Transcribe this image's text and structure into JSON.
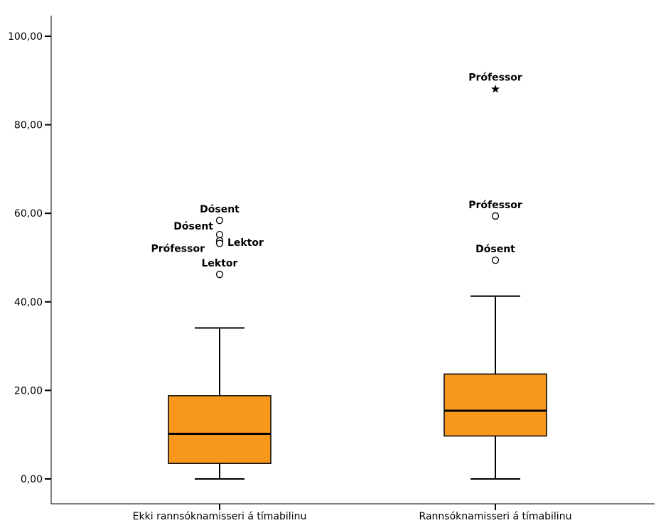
{
  "chart_data": {
    "type": "boxplot",
    "title": "",
    "xlabel": "",
    "ylabel": "",
    "ylim": [
      -5.5,
      106
    ],
    "yticks": [
      0,
      20,
      40,
      60,
      80,
      100
    ],
    "ytick_labels": [
      "0,00",
      "20,00",
      "40,00",
      "60,00",
      "80,00",
      "100,00"
    ],
    "grid": false,
    "box_color": "#F7981D",
    "categories": [
      "Ekki rannsóknamisseri á tímabilinu",
      "Rannsóknamisseri á tímabilinu"
    ],
    "boxes": [
      {
        "category": "Ekki rannsóknamisseri á tímabilinu",
        "whisker_low": 0.0,
        "q1": 3.5,
        "median": 10.2,
        "q3": 18.8,
        "whisker_high": 34.1,
        "outliers": [
          {
            "value": 58.4,
            "marker": "circle",
            "label": "Dósent",
            "label_pos": "above"
          },
          {
            "value": 55.2,
            "marker": "circle",
            "label": "Dósent",
            "label_pos": "left"
          },
          {
            "value": 53.8,
            "marker": "circle",
            "label": "Lektor",
            "label_pos": "right"
          },
          {
            "value": 53.2,
            "marker": "circle",
            "label": "Prófessor",
            "label_pos": "left-below"
          },
          {
            "value": 46.2,
            "marker": "circle",
            "label": "Lektor",
            "label_pos": "above"
          }
        ]
      },
      {
        "category": "Rannsóknamisseri á tímabilinu",
        "whisker_low": 0.0,
        "q1": 9.7,
        "median": 15.4,
        "q3": 23.7,
        "whisker_high": 41.3,
        "outliers": [
          {
            "value": 88.2,
            "marker": "star",
            "label": "Prófessor",
            "label_pos": "above"
          },
          {
            "value": 59.4,
            "marker": "circle",
            "label": "Prófessor",
            "label_pos": "above"
          },
          {
            "value": 49.4,
            "marker": "circle",
            "label": "Dósent",
            "label_pos": "above"
          }
        ]
      }
    ]
  }
}
